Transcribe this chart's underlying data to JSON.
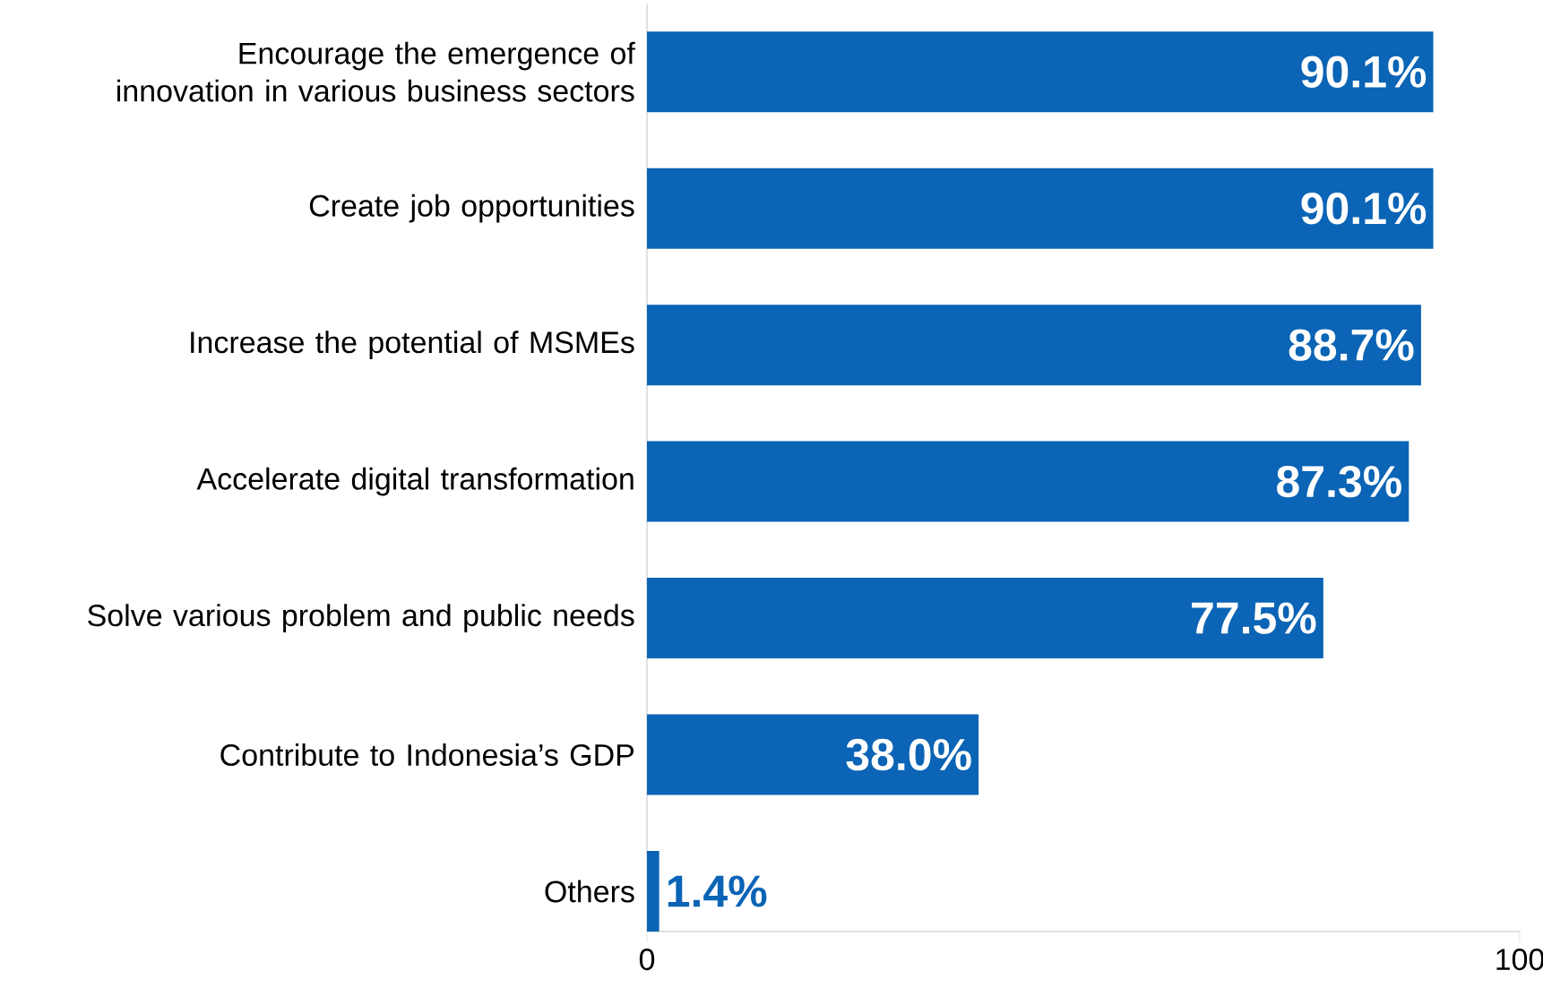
{
  "chart_data": {
    "type": "bar",
    "orientation": "horizontal",
    "categories": [
      "Encourage the emergence of innovation in various business sectors",
      "Create job opportunities",
      "Increase the potential of MSMEs",
      "Accelerate digital transformation",
      "Solve various problem and public needs",
      "Contribute to Indonesia’s GDP",
      "Others"
    ],
    "values": [
      90.1,
      90.1,
      88.7,
      87.3,
      77.5,
      38.0,
      1.4
    ],
    "value_labels": [
      "90.1%",
      "90.1%",
      "88.7%",
      "87.3%",
      "77.5%",
      "38.0%",
      "1.4%"
    ],
    "color": "#0b64b5",
    "xlim": [
      0,
      100
    ],
    "xticks": [
      0,
      100
    ]
  }
}
